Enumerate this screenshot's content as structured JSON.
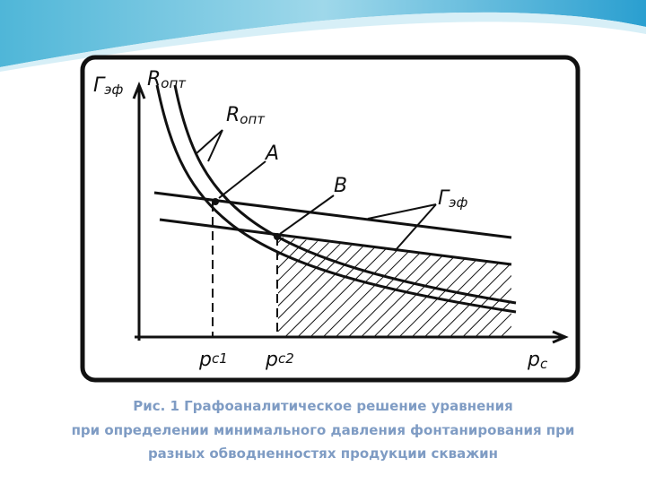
{
  "figure": {
    "y_axis_label": {
      "main": "Г",
      "sub": "эф"
    },
    "curve_label_top": {
      "main": "R",
      "sub": "опт"
    },
    "curve_label_mid": {
      "main": "R",
      "sub": "опт"
    },
    "point_a": "A",
    "point_b": "B",
    "line_label": {
      "main": "Г",
      "sub": "эф"
    },
    "x_tick_1": {
      "main": "p",
      "sub": "c1"
    },
    "x_tick_2": {
      "main": "p",
      "sub": "c2"
    },
    "x_axis_label": {
      "main": "p",
      "sub": "c"
    }
  },
  "caption": {
    "lines": [
      "Рис. 1 Графоаналитическое решение уравнения",
      "при определении минимального  давления фонтанирования при",
      "разных обводненностях продукции скважин"
    ]
  }
}
